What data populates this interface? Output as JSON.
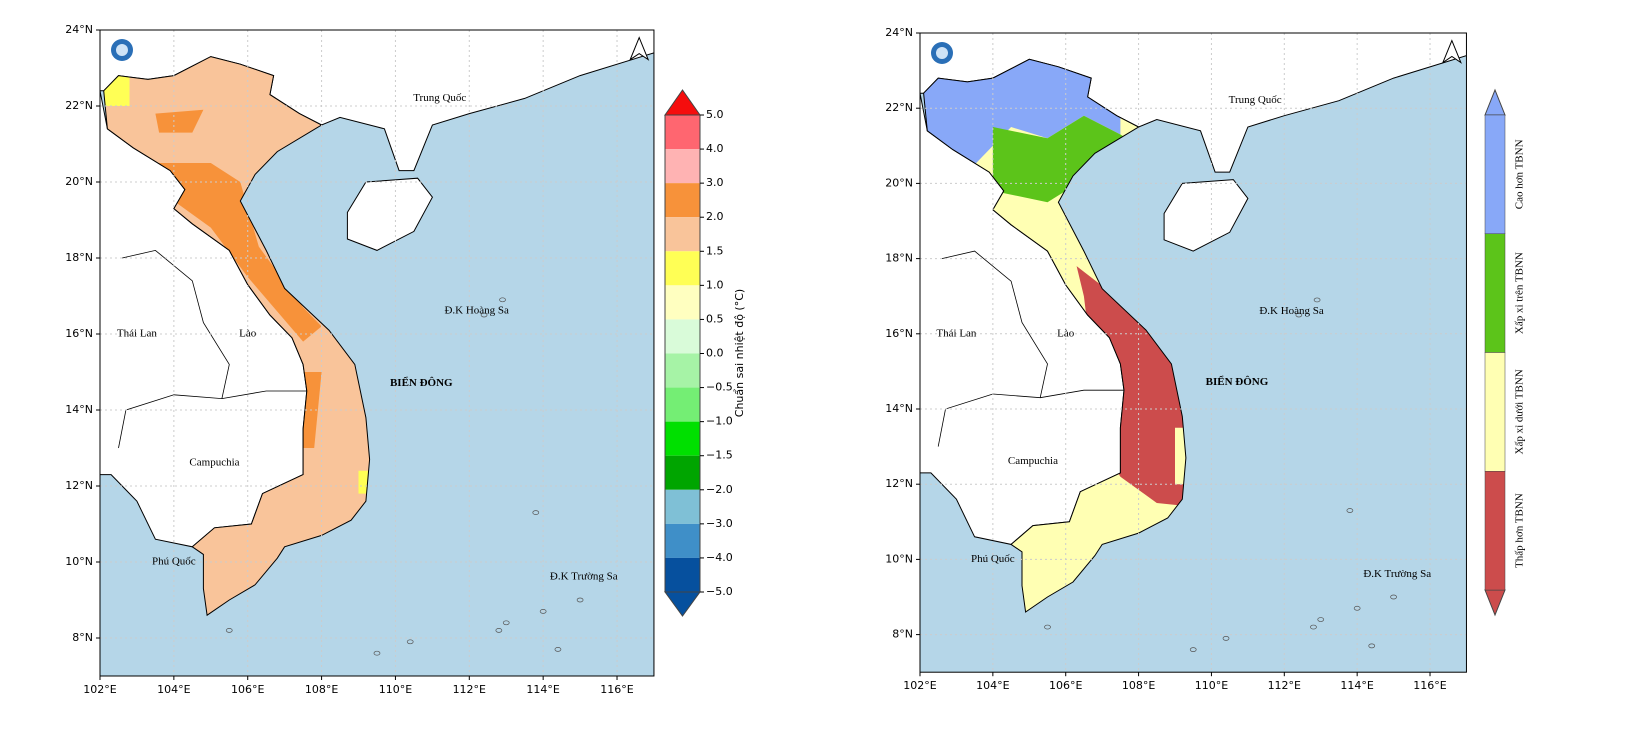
{
  "maps": [
    {
      "x_ticks": [
        "102°E",
        "104°E",
        "106°E",
        "108°E",
        "110°E",
        "112°E",
        "114°E",
        "116°E"
      ],
      "y_ticks": [
        "24°N",
        "22°N",
        "20°N",
        "18°N",
        "16°N",
        "14°N",
        "12°N",
        "10°N",
        "8°N"
      ],
      "places": {
        "china": "Trung Quốc",
        "thailand": "Thái Lan",
        "laos": "Lào",
        "cambodia": "Campuchia",
        "phu_quoc": "Phú Quốc",
        "sea": "BIỂN ĐÔNG",
        "paracel": "Đ.K Hoàng Sa",
        "spratly": "Đ.K Trường Sa"
      },
      "colorbar": {
        "title": "Chuẩn sai nhiệt độ (°C)",
        "ticks": [
          "5.0",
          "4.0",
          "3.0",
          "2.0",
          "1.5",
          "1.0",
          "0.5",
          "0.0",
          "−0.5",
          "−1.0",
          "−1.5",
          "−2.0",
          "−3.0",
          "−4.0",
          "−5.0"
        ],
        "colors": [
          "#f50d0d",
          "#ff6670",
          "#ffb3b3",
          "#f7923a",
          "#f9c49a",
          "#ffff55",
          "#ffffc0",
          "#d9fbd9",
          "#a6f3a6",
          "#74ee74",
          "#00e000",
          "#00a500",
          "#7fc0d6",
          "#3f8fc8",
          "#06509e"
        ]
      }
    },
    {
      "x_ticks": [
        "102°E",
        "104°E",
        "106°E",
        "108°E",
        "110°E",
        "112°E",
        "114°E",
        "116°E"
      ],
      "y_ticks": [
        "24°N",
        "22°N",
        "20°N",
        "18°N",
        "16°N",
        "14°N",
        "12°N",
        "10°N",
        "8°N"
      ],
      "places": {
        "china": "Trung Quốc",
        "thailand": "Thái Lan",
        "laos": "Lào",
        "cambodia": "Campuchia",
        "phu_quoc": "Phú Quốc",
        "sea": "BIỂN ĐÔNG",
        "paracel": "Đ.K Hoàng Sa",
        "spratly": "Đ.K Trường Sa"
      },
      "colorbar": {
        "categories": [
          {
            "label": "Cao hơn TBNN",
            "color": "#88a8f8"
          },
          {
            "label": "Xấp xỉ trên TBNN",
            "color": "#5cc41a"
          },
          {
            "label": "Xấp xỉ dưới TBNN",
            "color": "#ffffb3"
          },
          {
            "label": "Thấp hơn TBNN",
            "color": "#cc4c4c"
          }
        ]
      }
    }
  ]
}
